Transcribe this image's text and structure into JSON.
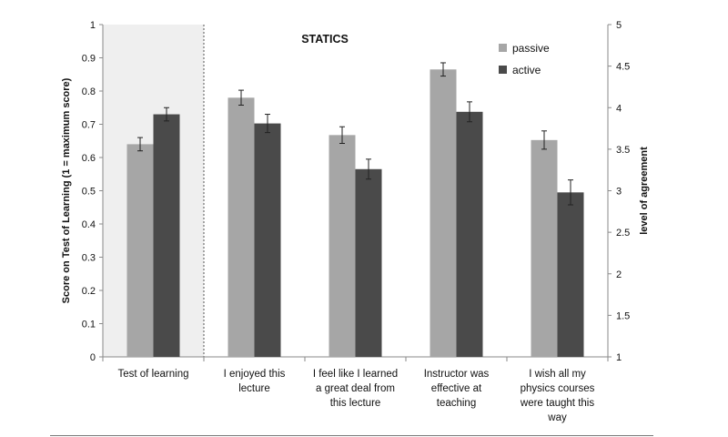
{
  "chart_data": {
    "type": "bar",
    "title": "STATICS",
    "ylabel": "Score on Test of Learning  (1 = maximum score)",
    "y2label": "level of agreement",
    "ylim": [
      0,
      1
    ],
    "y2lim": [
      1,
      5
    ],
    "yticks": [
      "0",
      "0.1",
      "0.2",
      "0.3",
      "0.4",
      "0.5",
      "0.6",
      "0.7",
      "0.8",
      "0.9",
      "1"
    ],
    "y2ticks": [
      "1",
      "1.5",
      "2",
      "2.5",
      "3",
      "3.5",
      "4",
      "4.5",
      "5"
    ],
    "legend_position": "top-right",
    "categories": [
      [
        "Test of learning"
      ],
      [
        "I enjoyed this",
        "lecture"
      ],
      [
        "I feel like I learned",
        "a great deal from",
        "this lecture"
      ],
      [
        "Instructor was",
        "effective at",
        "teaching"
      ],
      [
        "I wish all my",
        "physics courses",
        "were taught this",
        "way"
      ]
    ],
    "series": [
      {
        "name": "passive",
        "color": "#a6a6a6",
        "values": [
          0.64,
          4.12,
          3.67,
          4.46,
          3.61
        ],
        "errors": [
          0.02,
          0.09,
          0.1,
          0.08,
          0.11
        ]
      },
      {
        "name": "active",
        "color": "#4a4a4a",
        "values": [
          0.73,
          3.81,
          3.26,
          3.95,
          2.98
        ],
        "errors": [
          0.02,
          0.11,
          0.12,
          0.12,
          0.15
        ]
      }
    ],
    "axis_for_category": [
      "left",
      "right",
      "right",
      "right",
      "right"
    ],
    "grid": false
  }
}
